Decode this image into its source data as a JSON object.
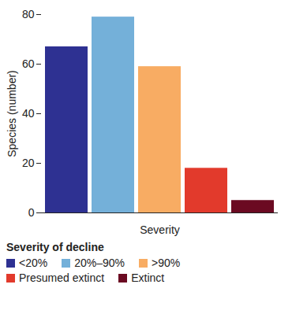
{
  "chart_data": {
    "type": "bar",
    "x_label": "Severity",
    "y_label": "Species (number)",
    "categories": [
      "<20%",
      "20%–90%",
      ">90%",
      "Presumed extinct",
      "Extinct"
    ],
    "values": [
      67,
      79,
      59,
      18,
      5
    ],
    "colors": [
      "#2e3192",
      "#74b0d9",
      "#f8ac63",
      "#e23a2c",
      "#6b0a22"
    ],
    "ylim": [
      0,
      80
    ],
    "yticks": [
      0,
      20,
      40,
      60,
      80
    ],
    "grid": false,
    "tick_labels": "y",
    "legend": "bottom",
    "legend_title": "Severity of decline"
  }
}
